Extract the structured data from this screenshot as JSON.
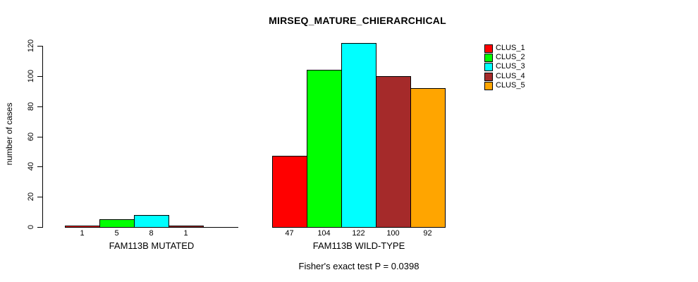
{
  "figure": {
    "title": "MIRSEQ_MATURE_CHIERARCHICAL",
    "annotation": "Fisher's exact test P = 0.0398"
  },
  "chart_data": {
    "type": "bar",
    "title": "MIRSEQ_MATURE_CHIERARCHICAL",
    "xlabel": "",
    "ylabel": "number of cases",
    "ylim": [
      0,
      120
    ],
    "yticks": [
      0,
      20,
      40,
      60,
      80,
      100,
      120
    ],
    "grid": false,
    "legend_position": "top-right",
    "categories": [
      "FAM113B MUTATED",
      "FAM113B WILD-TYPE"
    ],
    "series": [
      {
        "name": "CLUS_1",
        "color": "#ff0000",
        "values": [
          1,
          47
        ]
      },
      {
        "name": "CLUS_2",
        "color": "#00ff00",
        "values": [
          5,
          104
        ]
      },
      {
        "name": "CLUS_3",
        "color": "#00ffff",
        "values": [
          8,
          122
        ]
      },
      {
        "name": "CLUS_4",
        "color": "#a52a2a",
        "values": [
          1,
          100
        ]
      },
      {
        "name": "CLUS_5",
        "color": "#ffa500",
        "values": [
          0,
          92
        ]
      }
    ],
    "bar_value_labels": [
      [
        "1",
        "5",
        "8",
        "1",
        ""
      ],
      [
        "47",
        "104",
        "122",
        "100",
        "92"
      ]
    ],
    "annotation": "Fisher's exact test P = 0.0398"
  }
}
